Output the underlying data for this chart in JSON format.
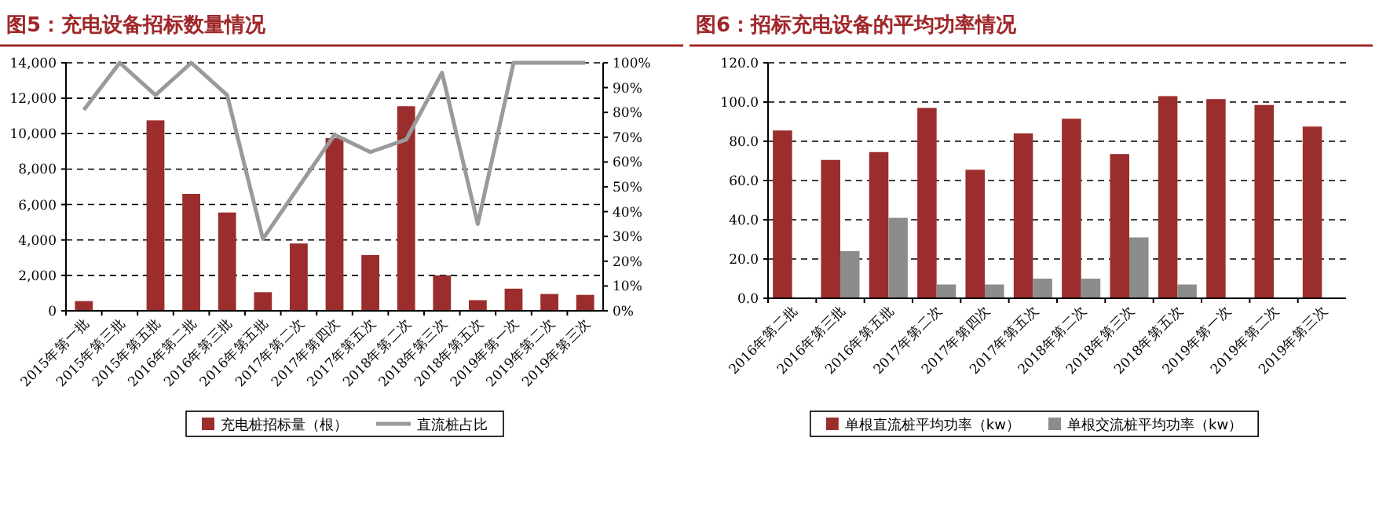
{
  "chart_data": [
    {
      "type": "bar",
      "title": "图5：充电设备招标数量情况",
      "categories": [
        "2015年第一批",
        "2015年第三批",
        "2015年第五批",
        "2016年第二批",
        "2016年第三批",
        "2016年第五批",
        "2017年第二次",
        "2017年第四次",
        "2017年第五次",
        "2018年第二次",
        "2018年第三次",
        "2018年第五次",
        "2019年第一次",
        "2019年第二次",
        "2019年第三次"
      ],
      "series": [
        {
          "name": "充电桩招标量（根）",
          "type": "bar",
          "color": "#9b2d2d",
          "values": [
            550,
            null,
            10750,
            6600,
            5550,
            1050,
            3800,
            9750,
            3150,
            11550,
            2000,
            600,
            1250,
            950,
            900
          ]
        },
        {
          "name": "直流桩占比",
          "type": "line",
          "axis": "y2",
          "color": "#9a9a9a",
          "values": [
            81,
            100,
            87,
            100,
            87,
            29,
            50,
            71,
            64,
            69,
            96,
            35,
            100,
            100,
            100
          ]
        }
      ],
      "ylim": [
        0,
        14000
      ],
      "yticks": [
        {
          "value": 0,
          "label": "0"
        },
        {
          "value": 2000,
          "label": "2,000"
        },
        {
          "value": 4000,
          "label": "4,000"
        },
        {
          "value": 6000,
          "label": "6,000"
        },
        {
          "value": 8000,
          "label": "8,000"
        },
        {
          "value": 10000,
          "label": "10,000"
        },
        {
          "value": 12000,
          "label": "12,000"
        },
        {
          "value": 14000,
          "label": "14,000"
        }
      ],
      "y2lim": [
        0,
        100
      ],
      "y2ticks": [
        {
          "value": 0,
          "label": "0%"
        },
        {
          "value": 10,
          "label": "10%"
        },
        {
          "value": 20,
          "label": "20%"
        },
        {
          "value": 30,
          "label": "30%"
        },
        {
          "value": 40,
          "label": "40%"
        },
        {
          "value": 50,
          "label": "50%"
        },
        {
          "value": 60,
          "label": "60%"
        },
        {
          "value": 70,
          "label": "70%"
        },
        {
          "value": 80,
          "label": "80%"
        },
        {
          "value": 90,
          "label": "90%"
        },
        {
          "value": 100,
          "label": "100%"
        }
      ],
      "grid": "y",
      "legend": "bottom"
    },
    {
      "type": "bar",
      "title": "图6：招标充电设备的平均功率情况",
      "categories": [
        "2016年第二批",
        "2016年第三批",
        "2016年第五批",
        "2017年第二次",
        "2017年第四次",
        "2017年第五次",
        "2018年第二次",
        "2018年第三次",
        "2018年第五次",
        "2019年第一次",
        "2019年第二次",
        "2019年第三次"
      ],
      "series": [
        {
          "name": "单根直流桩平均功率（kw）",
          "color": "#9b2d2d",
          "values": [
            85.5,
            70.5,
            74.5,
            97,
            65.5,
            84,
            91.5,
            73.5,
            103,
            101.5,
            98.5,
            87.5
          ]
        },
        {
          "name": "单根交流桩平均功率（kw）",
          "color": "#8c8c8c",
          "values": [
            null,
            24,
            41,
            7,
            7,
            10,
            10,
            31,
            7,
            null,
            null,
            null
          ]
        }
      ],
      "ylim": [
        0,
        120
      ],
      "yticks": [
        {
          "value": 0,
          "label": "0.0"
        },
        {
          "value": 20,
          "label": "20.0"
        },
        {
          "value": 40,
          "label": "40.0"
        },
        {
          "value": 60,
          "label": "60.0"
        },
        {
          "value": 80,
          "label": "80.0"
        },
        {
          "value": 100,
          "label": "100.0"
        },
        {
          "value": 120,
          "label": "120.0"
        }
      ],
      "grid": "y",
      "legend": "bottom"
    }
  ]
}
